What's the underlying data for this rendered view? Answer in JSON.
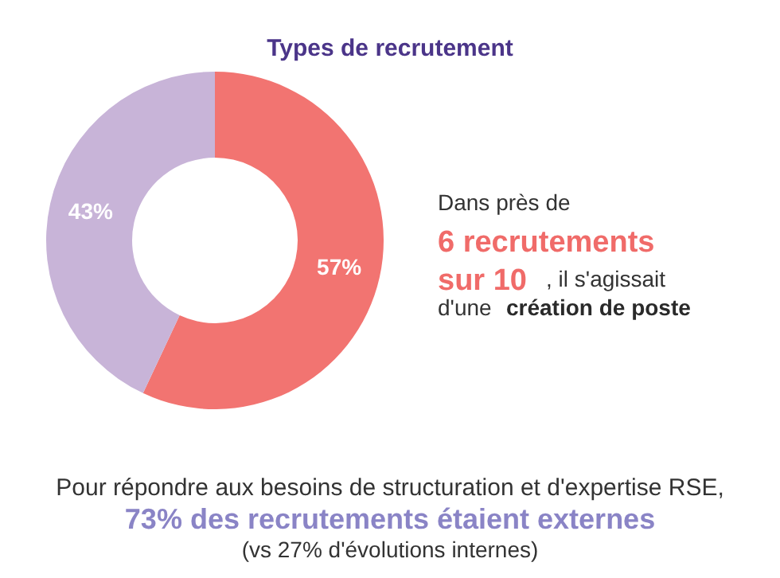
{
  "chart_data": {
    "type": "donut",
    "title": "Types de recrutement",
    "categories": [
      null,
      null
    ],
    "values": [
      57,
      43
    ],
    "colors": [
      "#f27471",
      "#c8b4d8"
    ],
    "value_labels": [
      "57%",
      "43%"
    ],
    "annotations": [
      "Dans près de",
      "6 recrutements",
      "sur  10",
      ",   il   s'agissait",
      "d'une",
      "création de poste",
      "Pour répondre aux besoins de structuration et d'expertise RSE,",
      "73% des recrutements étaient externes",
      "(vs 27% d'évolutions internes)"
    ]
  }
}
